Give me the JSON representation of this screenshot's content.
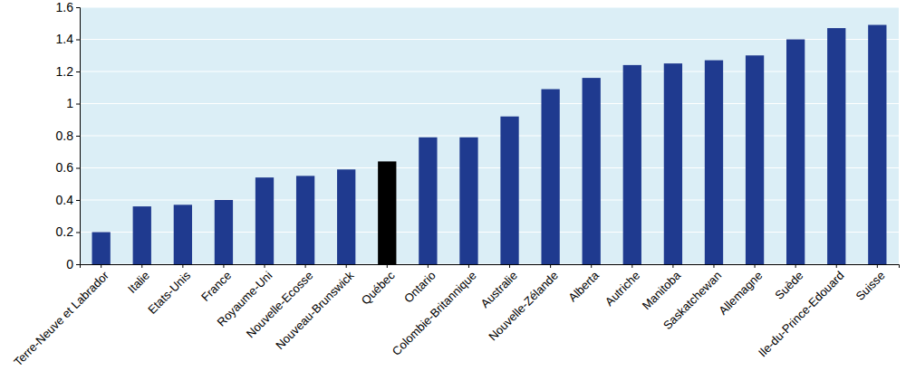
{
  "chart_data": {
    "type": "bar",
    "categories": [
      "Terre-Neuve et Labrador",
      "Italie",
      "Etats-Unis",
      "France",
      "Royaume-Uni",
      "Nouvelle-Ecosse",
      "Nouveau-Brunswick",
      "Québec",
      "Ontario",
      "Colombie-Britannique",
      "Australie",
      "Nouvelle-Zélande",
      "Alberta",
      "Autriche",
      "Manitoba",
      "Saskatchewan",
      "Allemagne",
      "Suède",
      "Ile-du-Prince-Edouard",
      "Suisse"
    ],
    "values": [
      0.2,
      0.36,
      0.37,
      0.4,
      0.54,
      0.55,
      0.59,
      0.64,
      0.79,
      0.79,
      0.92,
      1.09,
      1.16,
      1.24,
      1.25,
      1.27,
      1.3,
      1.4,
      1.47,
      1.49
    ],
    "colors": [
      "#1f3a8f",
      "#1f3a8f",
      "#1f3a8f",
      "#1f3a8f",
      "#1f3a8f",
      "#1f3a8f",
      "#1f3a8f",
      "#000000",
      "#1f3a8f",
      "#1f3a8f",
      "#1f3a8f",
      "#1f3a8f",
      "#1f3a8f",
      "#1f3a8f",
      "#1f3a8f",
      "#1f3a8f",
      "#1f3a8f",
      "#1f3a8f",
      "#1f3a8f",
      "#1f3a8f"
    ],
    "ylim": [
      0,
      1.6
    ],
    "yticks": [
      0,
      0.2,
      0.4,
      0.6,
      0.8,
      1,
      1.2,
      1.4,
      1.6
    ],
    "grid": true
  }
}
